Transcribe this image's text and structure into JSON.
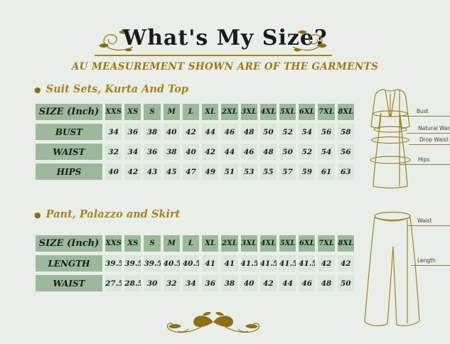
{
  "page": {
    "title": "What's My Size?",
    "subtitle": "AU MEASUREMENT SHOWN ARE OF THE GARMENTS"
  },
  "colors": {
    "background": "#e9efe8",
    "accent_gold": "#a8811c",
    "ornament_gold": "#8d6f16",
    "lineart_gold": "#a08226",
    "cell_green_dark": "#9cb99c",
    "cell_green_light": "#dbe7da",
    "text_ink": "#1b1b1b"
  },
  "sections": [
    {
      "heading": "Suit Sets, Kurta And Top",
      "table": {
        "header": [
          "SIZE (Inch)",
          "XXS",
          "XS",
          "S",
          "M",
          "L",
          "XL",
          "2XL",
          "3XL",
          "4XL",
          "5XL",
          "6XL",
          "7XL",
          "8XL"
        ],
        "rows": [
          {
            "label": "BUST",
            "values": [
              34,
              36,
              38,
              40,
              42,
              44,
              46,
              48,
              50,
              52,
              54,
              56,
              58
            ]
          },
          {
            "label": "WAIST",
            "values": [
              32,
              34,
              36,
              38,
              40,
              42,
              44,
              46,
              48,
              50,
              52,
              54,
              56
            ]
          },
          {
            "label": "HIPS",
            "values": [
              40,
              42,
              43,
              45,
              47,
              49,
              51,
              53,
              55,
              57,
              59,
              61,
              63
            ]
          }
        ]
      }
    },
    {
      "heading": "Pant, Palazzo and Skirt",
      "table": {
        "header": [
          "SIZE (Inch)",
          "XXS",
          "XS",
          "S",
          "M",
          "L",
          "XL",
          "2XL",
          "3XL",
          "4XL",
          "5XL",
          "6XL",
          "7XL",
          "8XL"
        ],
        "rows": [
          {
            "label": "LENGTH",
            "values": [
              39.5,
              39.5,
              39.5,
              40.5,
              40.5,
              41,
              41,
              41.5,
              41.5,
              41.5,
              41.5,
              42,
              42
            ]
          },
          {
            "label": "WAIST",
            "values": [
              27.5,
              28.5,
              30,
              32,
              34,
              36,
              38,
              40,
              42,
              44,
              46,
              48,
              50
            ]
          }
        ]
      }
    }
  ],
  "figures": {
    "kurta": {
      "bust": "Bust",
      "natural_waist": "Natural Waist",
      "drop_waist": "Drop Waist",
      "hips": "Hips"
    },
    "pants": {
      "waist": "Waist",
      "length": "Length"
    }
  },
  "chart_data": [
    {
      "type": "table",
      "title": "Suit Sets, Kurta And Top",
      "unit": "Inch",
      "columns": [
        "XXS",
        "XS",
        "S",
        "M",
        "L",
        "XL",
        "2XL",
        "3XL",
        "4XL",
        "5XL",
        "6XL",
        "7XL",
        "8XL"
      ],
      "rows": [
        {
          "label": "BUST",
          "values": [
            34,
            36,
            38,
            40,
            42,
            44,
            46,
            48,
            50,
            52,
            54,
            56,
            58
          ]
        },
        {
          "label": "WAIST",
          "values": [
            32,
            34,
            36,
            38,
            40,
            42,
            44,
            46,
            48,
            50,
            52,
            54,
            56
          ]
        },
        {
          "label": "HIPS",
          "values": [
            40,
            42,
            43,
            45,
            47,
            49,
            51,
            53,
            55,
            57,
            59,
            61,
            63
          ]
        }
      ]
    },
    {
      "type": "table",
      "title": "Pant, Palazzo and Skirt",
      "unit": "Inch",
      "columns": [
        "XXS",
        "XS",
        "S",
        "M",
        "L",
        "XL",
        "2XL",
        "3XL",
        "4XL",
        "5XL",
        "6XL",
        "7XL",
        "8XL"
      ],
      "rows": [
        {
          "label": "LENGTH",
          "values": [
            39.5,
            39.5,
            39.5,
            40.5,
            40.5,
            41,
            41,
            41.5,
            41.5,
            41.5,
            41.5,
            42,
            42
          ]
        },
        {
          "label": "WAIST",
          "values": [
            27.5,
            28.5,
            30,
            32,
            34,
            36,
            38,
            40,
            42,
            44,
            46,
            48,
            50
          ]
        }
      ]
    }
  ]
}
